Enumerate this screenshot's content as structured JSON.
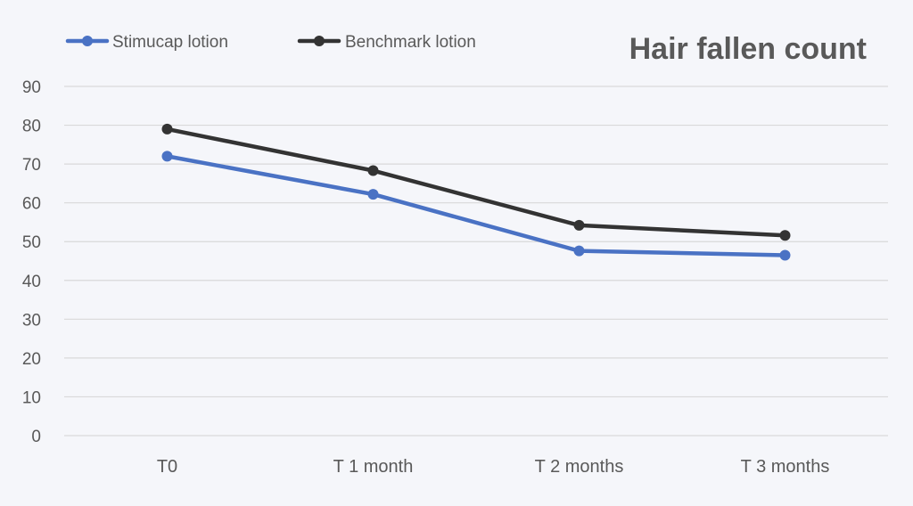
{
  "chart_data": {
    "type": "line",
    "title": "Hair fallen count",
    "categories": [
      "T0",
      "T 1 month",
      "T 2 months",
      "T 3 months"
    ],
    "series": [
      {
        "name": "Stimucap lotion",
        "values": [
          72,
          62.2,
          47.6,
          46.5
        ],
        "color": "#4a72c4"
      },
      {
        "name": "Benchmark lotion",
        "values": [
          79,
          68.3,
          54.2,
          51.6
        ],
        "color": "#333333"
      }
    ],
    "y_ticks": [
      "0",
      "10",
      "20",
      "30",
      "40",
      "50",
      "60",
      "70",
      "80",
      "90"
    ],
    "ylim": [
      0,
      90
    ],
    "grid": true,
    "legend": "top-left"
  }
}
